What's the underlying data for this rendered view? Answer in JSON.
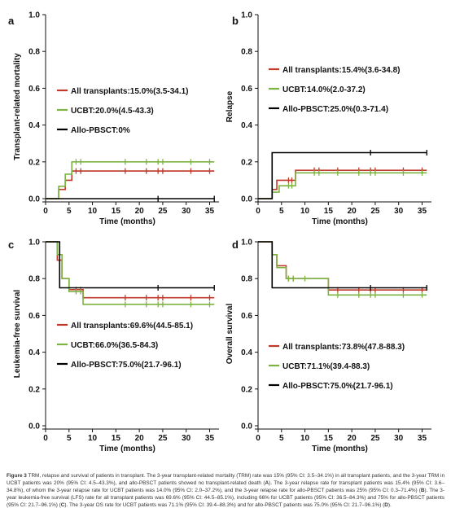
{
  "chart_data": [
    {
      "type": "line",
      "step": true,
      "panel_label": "a",
      "xlabel": "Time (months)",
      "ylabel": "Transplant-related mortality",
      "xlim": [
        0,
        37
      ],
      "ylim": [
        0,
        1.0
      ],
      "x_ticks": [
        0,
        5,
        10,
        15,
        20,
        25,
        30,
        35
      ],
      "y_ticks": [
        0.0,
        0.2,
        0.4,
        0.6,
        0.8,
        1.0
      ],
      "x_tick_labels": [
        "0",
        "5",
        "10",
        "15",
        "20",
        "25",
        "30",
        "35"
      ],
      "y_tick_labels": [
        "0.0",
        "0.2",
        "0.4",
        "0.6",
        "0.8",
        "1.0"
      ],
      "legend_position": "middle-right",
      "series": [
        {
          "name": "All transplants:15.0%(3.5-34.1)",
          "color": "#c0392b",
          "x": [
            0,
            2.8,
            4.2,
            5.6,
            36
          ],
          "y": [
            0,
            0.05,
            0.1,
            0.15,
            0.15
          ],
          "censor_x": [
            6.5,
            7.5,
            17,
            21.5,
            24,
            25,
            31,
            35
          ]
        },
        {
          "name": "UCBT:20.0%(4.5-43.3)",
          "color": "#7cb342",
          "x": [
            0,
            2.8,
            4.2,
            5.6,
            36
          ],
          "y": [
            0,
            0.067,
            0.133,
            0.2,
            0.2
          ],
          "censor_x": [
            6.5,
            7.5,
            17,
            21.5,
            24,
            25,
            31,
            35
          ]
        },
        {
          "name": "Allo-PBSCT:0%",
          "color": "#000000",
          "x": [
            0,
            36
          ],
          "y": [
            0,
            0
          ],
          "censor_x": [
            24,
            36
          ]
        }
      ]
    },
    {
      "type": "line",
      "step": true,
      "panel_label": "b",
      "xlabel": "Time (months)",
      "ylabel": "Relapse",
      "xlim": [
        0,
        37
      ],
      "ylim": [
        0,
        1.0
      ],
      "x_ticks": [
        0,
        5,
        10,
        15,
        20,
        25,
        30,
        35
      ],
      "y_ticks": [
        0.0,
        0.2,
        0.4,
        0.6,
        0.8,
        1.0
      ],
      "x_tick_labels": [
        "0",
        "5",
        "10",
        "15",
        "20",
        "25",
        "30",
        "35"
      ],
      "y_tick_labels": [
        "0.0",
        "0.2",
        "0.4",
        "0.6",
        "0.8",
        "1.0"
      ],
      "legend_position": "top-right",
      "series": [
        {
          "name": "All transplants:15.4%(3.6-34.8)",
          "color": "#c0392b",
          "x": [
            0,
            3.0,
            4.0,
            8.0,
            36
          ],
          "y": [
            0,
            0.05,
            0.1,
            0.154,
            0.154
          ],
          "censor_x": [
            6.5,
            7.2,
            12,
            13,
            17,
            21.5,
            24,
            25,
            31,
            35
          ]
        },
        {
          "name": "UCBT:14.0%(2.0-37.2)",
          "color": "#7cb342",
          "x": [
            0,
            3.0,
            4.5,
            8.0,
            36
          ],
          "y": [
            0,
            0.035,
            0.07,
            0.14,
            0.14
          ],
          "censor_x": [
            6.5,
            7.2,
            12,
            13,
            17,
            21.5,
            24,
            25,
            31,
            35
          ]
        },
        {
          "name": "Allo-PBSCT:25.0%(0.3-71.4)",
          "color": "#000000",
          "x": [
            0,
            3.0,
            36
          ],
          "y": [
            0,
            0.25,
            0.25
          ],
          "censor_x": [
            24,
            36
          ]
        }
      ]
    },
    {
      "type": "line",
      "step": true,
      "panel_label": "c",
      "xlabel": "Time (months)",
      "ylabel": "Leukemia-free survival",
      "xlim": [
        0,
        37
      ],
      "ylim": [
        0,
        1.0
      ],
      "x_ticks": [
        0,
        5,
        10,
        15,
        20,
        25,
        30,
        35
      ],
      "y_ticks": [
        0.0,
        0.2,
        0.4,
        0.6,
        0.8,
        1.0
      ],
      "x_tick_labels": [
        "0",
        "5",
        "10",
        "15",
        "20",
        "25",
        "30",
        "35"
      ],
      "y_tick_labels": [
        "0.0",
        "0.2",
        "0.4",
        "0.6",
        "0.8",
        "1.0"
      ],
      "legend_position": "middle-right",
      "series": [
        {
          "name": "All transplants:69.6%(44.5-85.1)",
          "color": "#c0392b",
          "x": [
            0,
            2.5,
            3.5,
            5.0,
            8.0,
            36
          ],
          "y": [
            1.0,
            0.9,
            0.8,
            0.74,
            0.696,
            0.696
          ],
          "censor_x": [
            6.5,
            7.5,
            17,
            21.5,
            24,
            25,
            31,
            35
          ]
        },
        {
          "name": "UCBT:66.0%(36.5-84.3)",
          "color": "#7cb342",
          "x": [
            0,
            2.5,
            3.5,
            5.0,
            8.0,
            36
          ],
          "y": [
            1.0,
            0.93,
            0.8,
            0.73,
            0.66,
            0.66
          ],
          "censor_x": [
            6.5,
            7.5,
            17,
            21.5,
            24,
            25,
            31,
            35
          ]
        },
        {
          "name": "Allo-PBSCT:75.0%(21.7-96.1)",
          "color": "#000000",
          "x": [
            0,
            3.0,
            36
          ],
          "y": [
            1.0,
            0.75,
            0.75
          ],
          "censor_x": [
            24,
            36
          ]
        }
      ]
    },
    {
      "type": "line",
      "step": true,
      "panel_label": "d",
      "xlabel": "Time (months)",
      "ylabel": "Overall survival",
      "xlim": [
        0,
        37
      ],
      "ylim": [
        0,
        1.0
      ],
      "x_ticks": [
        0,
        5,
        10,
        15,
        20,
        25,
        30,
        35
      ],
      "y_ticks": [
        0.0,
        0.2,
        0.4,
        0.6,
        0.8,
        1.0
      ],
      "x_tick_labels": [
        "0",
        "5",
        "10",
        "15",
        "20",
        "25",
        "30",
        "35"
      ],
      "y_tick_labels": [
        "0.0",
        "0.2",
        "0.4",
        "0.6",
        "0.8",
        "1.0"
      ],
      "legend_position": "middle-right",
      "series": [
        {
          "name": "All transplants:73.8%(47.8-88.3)",
          "color": "#c0392b",
          "x": [
            0,
            3.0,
            4.0,
            6.0,
            15.0,
            36
          ],
          "y": [
            1.0,
            0.93,
            0.87,
            0.8,
            0.738,
            0.738
          ],
          "censor_x": [
            6.5,
            7.5,
            17,
            21.5,
            24,
            25,
            31,
            35
          ]
        },
        {
          "name": "UCBT:71.1%(39.4-88.3)",
          "color": "#7cb342",
          "x": [
            0,
            3.0,
            4.0,
            6.0,
            15.0,
            36
          ],
          "y": [
            1.0,
            0.93,
            0.86,
            0.8,
            0.711,
            0.711
          ],
          "censor_x": [
            6.5,
            7.5,
            10,
            17,
            21.5,
            24,
            25,
            31,
            35
          ]
        },
        {
          "name": "Allo-PBSCT:75.0%(21.7-96.1)",
          "color": "#000000",
          "x": [
            0,
            3.0,
            36
          ],
          "y": [
            1.0,
            0.75,
            0.75
          ],
          "censor_x": [
            24,
            36
          ]
        }
      ]
    }
  ],
  "caption": {
    "lead": "Figure 3",
    "text_1": " TRM, relapse and survival of patients in transplant. The 3-year transplant-related mortality (TRM) rate was 15% (95% CI: 3.5–34.1%) in all transplant patients, and the 3-year TRM in UCBT patients was 20% (95% CI: 4.5–43.3%), and allo-PBSCT patients showed no transplant-related death (",
    "ref_a": "A",
    "text_2": "). The 3-year relapse rate for transplant patients was 15.4% (95% CI: 3.6–34.8%), of whom the 3-year relapse rate for UCBT patients was 14.0% (95% CI: 2.0–37.2%), and the 3-year relapse rate for allo-PBSCT patients was 25% (95% CI: 0.3–71.4%) (",
    "ref_b": "B",
    "text_3": "). The 3-year leukemia-free survival (LFS) rate for all transplant patients was 69.6% (95% CI: 44.5–85.1%), including 66% for UCBT patients (95% CI: 36.5–84.3%) and 75% for allo-PBSCT patients (95% CI: 21.7–96.1%) (",
    "ref_c": "C",
    "text_4": "). The 3-year OS rate for UCBT patients was 71.1% (95% CI: 39.4–88.3%) and for allo-PBSCT patients was 75.0% (95% CI: 21.7–96.1%) (",
    "ref_d": "D",
    "text_5": ")."
  }
}
